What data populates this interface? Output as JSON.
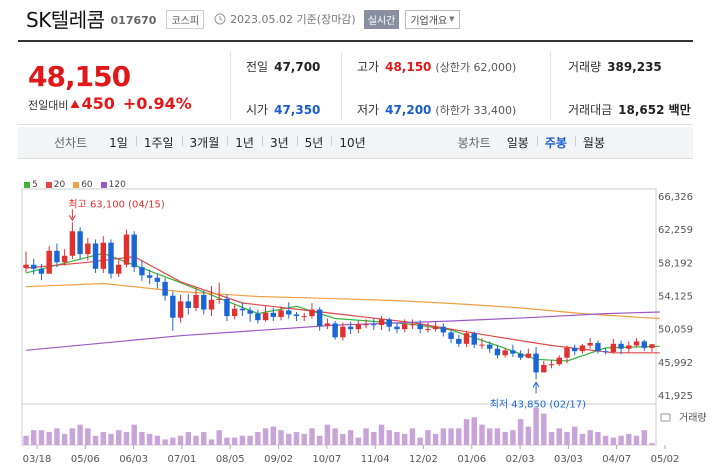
{
  "header": {
    "title": "SK텔레콤",
    "code": "017670",
    "market": "코스피",
    "date": "2023.05.02 기준(장마감)",
    "realtime": "실시간",
    "overview": "기업개요"
  },
  "price": {
    "current": "48,150",
    "change_label": "전일대비",
    "change_value": "450",
    "change_pct": "+0.94%",
    "prev_label": "전일",
    "prev_value": "47,700",
    "open_label": "시가",
    "open_value": "47,350",
    "high_label": "고가",
    "high_value": "48,150",
    "upper_limit": "(상한가 62,000)",
    "low_label": "저가",
    "low_value": "47,200",
    "lower_limit": "(하한가 33,400)",
    "volume_label": "거래량",
    "volume_value": "389,235",
    "amount_label": "거래대금",
    "amount_value": "18,652 백만"
  },
  "periods": {
    "label": "선차트",
    "items": [
      "1일",
      "1주일",
      "3개월",
      "1년",
      "3년",
      "5년",
      "10년"
    ],
    "candle_label": "봉차트",
    "candle_items": [
      "일봉",
      "주봉",
      "월봉"
    ],
    "candle_active": 1
  },
  "legend": [
    {
      "name": "5",
      "color": "#3bb33b"
    },
    {
      "name": "20",
      "color": "#e04848"
    },
    {
      "name": "60",
      "color": "#f0a040"
    },
    {
      "name": "120",
      "color": "#9b59c6"
    }
  ],
  "annotations": {
    "high": "최고 63,100 (04/15)",
    "low": "최저 43,850 (02/17)",
    "volume": "거래량"
  },
  "chart_data": {
    "type": "candlestick",
    "title": "",
    "y_ticks": [
      66326,
      62259,
      58192,
      54125,
      50059,
      45992,
      41925
    ],
    "ylim": [
      41925,
      66326
    ],
    "x_labels": [
      "03/18",
      "05/06",
      "06/03",
      "07/01",
      "08/05",
      "09/02",
      "10/07",
      "11/04",
      "12/02",
      "01/06",
      "02/03",
      "03/03",
      "04/07",
      "05/02"
    ],
    "high_point": {
      "value": 63100,
      "date": "04/15"
    },
    "low_point": {
      "value": 43850,
      "date": "02/17"
    },
    "candles": [
      [
        57500,
        57900,
        59500,
        57000
      ],
      [
        57900,
        57400,
        58600,
        56700
      ],
      [
        57400,
        56800,
        58000,
        56000
      ],
      [
        56800,
        59600,
        60200,
        56800
      ],
      [
        59600,
        58200,
        60500,
        57600
      ],
      [
        58200,
        59000,
        59800,
        57800
      ],
      [
        59000,
        62000,
        63100,
        58600
      ],
      [
        62000,
        59200,
        62500,
        58600
      ],
      [
        59200,
        60500,
        61200,
        58400
      ],
      [
        60500,
        57400,
        61000,
        56900
      ],
      [
        57400,
        60600,
        61400,
        56900
      ],
      [
        60600,
        56800,
        61000,
        56200
      ],
      [
        56800,
        57900,
        58500,
        56400
      ],
      [
        57900,
        61600,
        62200,
        57600
      ],
      [
        61600,
        57600,
        62000,
        57000
      ],
      [
        57600,
        56600,
        58400,
        55900
      ],
      [
        56600,
        56300,
        57300,
        55500
      ],
      [
        56300,
        55800,
        56800,
        55000
      ],
      [
        55800,
        54100,
        56300,
        53500
      ],
      [
        54100,
        51400,
        54600,
        49800
      ],
      [
        51400,
        53400,
        54200,
        50800
      ],
      [
        53400,
        52600,
        54300,
        51800
      ],
      [
        52600,
        54200,
        55100,
        52200
      ],
      [
        54200,
        52400,
        54700,
        51800
      ],
      [
        52400,
        53600,
        55300,
        51600
      ],
      [
        53600,
        53700,
        55700,
        53100
      ],
      [
        53700,
        51600,
        54200,
        51000
      ],
      [
        51600,
        52500,
        53100,
        51200
      ],
      [
        52500,
        52300,
        53300,
        51600
      ],
      [
        52300,
        51900,
        52700,
        50900
      ],
      [
        51900,
        51100,
        52400,
        50700
      ],
      [
        51100,
        52000,
        52800,
        50900
      ],
      [
        52000,
        51500,
        52600,
        51000
      ],
      [
        51500,
        52300,
        52800,
        51100
      ],
      [
        52300,
        51800,
        53300,
        51300
      ],
      [
        51800,
        51600,
        52100,
        51000
      ],
      [
        51600,
        51600,
        52000,
        51000
      ],
      [
        51600,
        52400,
        53200,
        51300
      ],
      [
        52400,
        50400,
        52700,
        49800
      ],
      [
        50400,
        50700,
        51300,
        50000
      ],
      [
        50700,
        49000,
        51000,
        48700
      ],
      [
        49000,
        50300,
        50800,
        48600
      ],
      [
        50300,
        50000,
        50900,
        49400
      ],
      [
        50000,
        50600,
        51000,
        49500
      ],
      [
        50600,
        50600,
        51200,
        50100
      ],
      [
        50600,
        50500,
        51300,
        49900
      ],
      [
        50500,
        51200,
        51600,
        49900
      ],
      [
        51200,
        50300,
        51400,
        49700
      ],
      [
        50300,
        50000,
        50800,
        49500
      ],
      [
        50000,
        50600,
        51200,
        49600
      ],
      [
        50600,
        50600,
        51200,
        50000
      ],
      [
        50600,
        50000,
        51100,
        49500
      ],
      [
        50000,
        50000,
        50800,
        49600
      ],
      [
        50000,
        50300,
        51000,
        49700
      ],
      [
        50300,
        49600,
        50700,
        49100
      ],
      [
        49600,
        48800,
        49900,
        48300
      ],
      [
        48800,
        48200,
        49300,
        47800
      ],
      [
        48200,
        49500,
        49800,
        47800
      ],
      [
        49500,
        48100,
        49700,
        47700
      ],
      [
        48100,
        48100,
        48900,
        47600
      ],
      [
        48100,
        47600,
        48500,
        47100
      ],
      [
        47600,
        46800,
        48000,
        46400
      ],
      [
        46800,
        47400,
        47700,
        46500
      ],
      [
        47400,
        47000,
        48100,
        46600
      ],
      [
        47000,
        46500,
        47400,
        46200
      ],
      [
        46500,
        47000,
        47600,
        46400
      ],
      [
        47000,
        44700,
        47800,
        43850
      ],
      [
        44700,
        45600,
        46100,
        44700
      ],
      [
        45600,
        45700,
        46200,
        45200
      ],
      [
        45700,
        46500,
        46800,
        45500
      ],
      [
        46500,
        47700,
        48000,
        45800
      ],
      [
        47700,
        47300,
        48100,
        46800
      ],
      [
        47300,
        48000,
        48200,
        47000
      ],
      [
        48000,
        48300,
        48900,
        47600
      ],
      [
        48300,
        47300,
        48600,
        47000
      ],
      [
        47300,
        47200,
        47700,
        46900
      ],
      [
        47200,
        48200,
        48800,
        47000
      ],
      [
        48200,
        47600,
        48600,
        46900
      ],
      [
        47600,
        48000,
        48500,
        47100
      ],
      [
        48000,
        48500,
        48900,
        47800
      ],
      [
        48500,
        47700,
        48700,
        47300
      ],
      [
        47700,
        48150,
        48150,
        47200
      ]
    ],
    "ma": {
      "5": [
        [
          0,
          56900
        ],
        [
          10,
          59300
        ],
        [
          20,
          55700
        ],
        [
          30,
          51900
        ],
        [
          35,
          52800
        ],
        [
          40,
          51300
        ],
        [
          50,
          50600
        ],
        [
          55,
          49900
        ],
        [
          60,
          48300
        ],
        [
          66,
          46300
        ],
        [
          70,
          46100
        ],
        [
          75,
          47700
        ],
        [
          82,
          47900
        ]
      ],
      "20": [
        [
          0,
          57500
        ],
        [
          8,
          58200
        ],
        [
          14,
          58900
        ],
        [
          20,
          55800
        ],
        [
          28,
          53200
        ],
        [
          40,
          51900
        ],
        [
          50,
          50800
        ],
        [
          60,
          49200
        ],
        [
          68,
          48000
        ],
        [
          76,
          47100
        ],
        [
          82,
          47100
        ]
      ],
      "60": [
        [
          0,
          55200
        ],
        [
          10,
          55600
        ],
        [
          20,
          54600
        ],
        [
          30,
          54000
        ],
        [
          38,
          53800
        ],
        [
          48,
          53500
        ],
        [
          56,
          53100
        ],
        [
          64,
          52600
        ],
        [
          72,
          51900
        ],
        [
          80,
          51400
        ],
        [
          82,
          51300
        ]
      ],
      "120": [
        [
          0,
          47400
        ],
        [
          20,
          49200
        ],
        [
          40,
          50500
        ],
        [
          55,
          51000
        ],
        [
          65,
          51400
        ],
        [
          75,
          51900
        ],
        [
          82,
          52100
        ]
      ]
    },
    "volumes": [
      5,
      8,
      8,
      7,
      9,
      6,
      9,
      11,
      9,
      5,
      7,
      6,
      8,
      7,
      11,
      7,
      6,
      5,
      3,
      4,
      5,
      7,
      5,
      7,
      3,
      8,
      4,
      4,
      5,
      5,
      7,
      9,
      10,
      8,
      6,
      7,
      6,
      9,
      5,
      11,
      9,
      6,
      8,
      4,
      9,
      7,
      11,
      8,
      7,
      6,
      9,
      4,
      8,
      6,
      9,
      9,
      9,
      14,
      15,
      11,
      9,
      9,
      7,
      8,
      14,
      10,
      20,
      17,
      7,
      9,
      7,
      10,
      6,
      8,
      7,
      5,
      4,
      5,
      6,
      5,
      8,
      1
    ]
  }
}
